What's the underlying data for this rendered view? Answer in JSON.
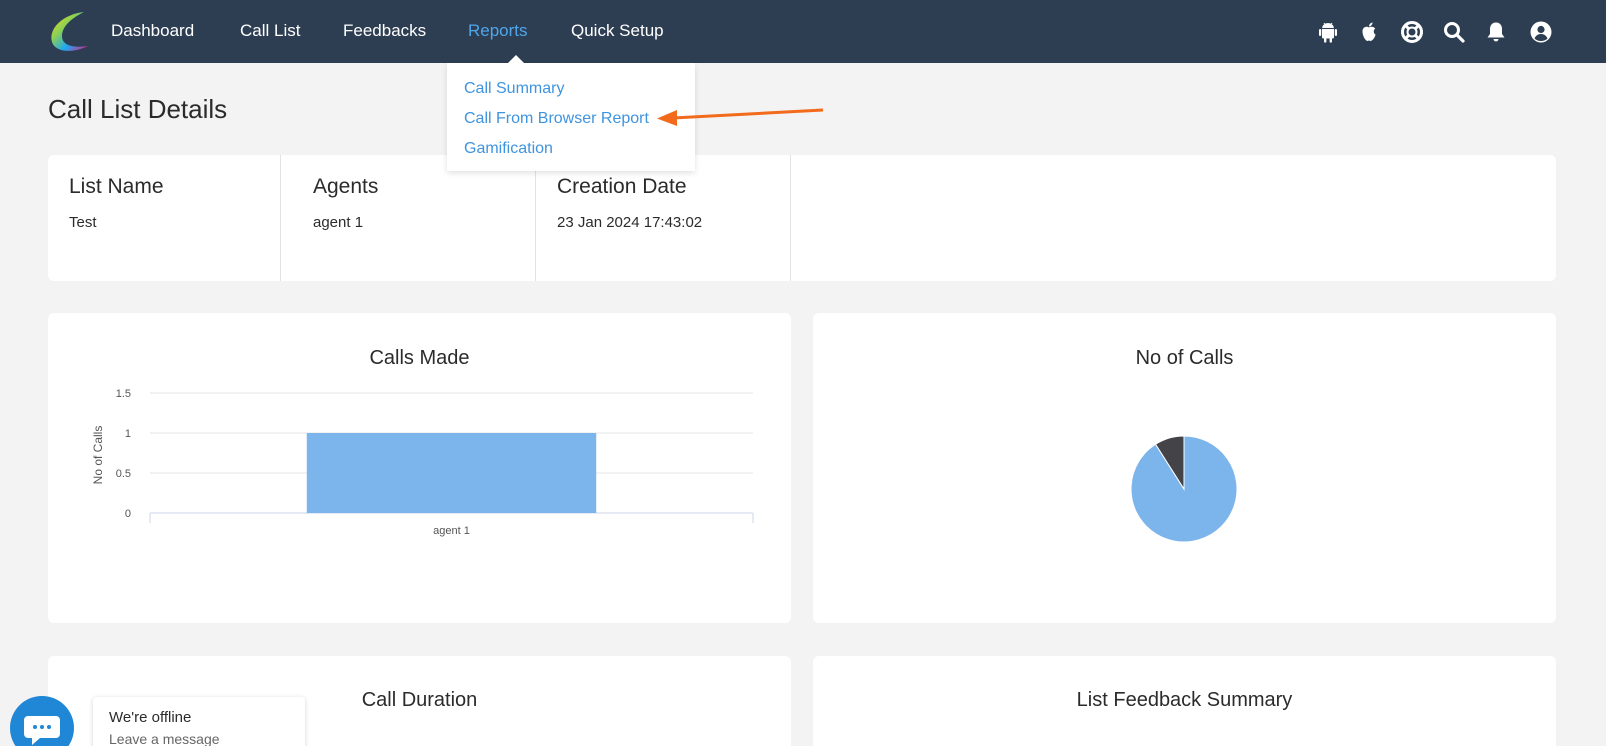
{
  "nav": {
    "items": [
      {
        "label": "Dashboard"
      },
      {
        "label": "Call List"
      },
      {
        "label": "Feedbacks"
      },
      {
        "label": "Reports"
      },
      {
        "label": "Quick Setup"
      }
    ],
    "active_item": "Reports",
    "icons": [
      "android-icon",
      "apple-icon",
      "support-icon",
      "search-icon",
      "bell-icon",
      "user-icon"
    ],
    "active_color": "#4fa6ea",
    "bar_color": "#2d3e52"
  },
  "reports_menu": {
    "items": [
      {
        "label": "Call Summary"
      },
      {
        "label": "Call From Browser Report"
      },
      {
        "label": "Gamification"
      }
    ],
    "annotation_color": "#f26a1b"
  },
  "page": {
    "title": "Call List Details"
  },
  "details": {
    "list_name_label": "List Name",
    "list_name_value": "Test",
    "agents_label": "Agents",
    "agents_value": "agent 1",
    "creation_date_label": "Creation Date",
    "creation_date_value": "23 Jan 2024 17:43:02"
  },
  "panels": {
    "calls_made_title": "Calls Made",
    "no_of_calls_title": "No of Calls",
    "call_duration_title": "Call Duration",
    "list_feedback_title": "List Feedback Summary"
  },
  "chart_data": [
    {
      "type": "bar",
      "title": "Calls Made",
      "ylabel": "No of Calls",
      "xlabel": "",
      "categories": [
        "agent 1"
      ],
      "values": [
        1
      ],
      "ylim": [
        0,
        1.5
      ],
      "yticks": [
        0,
        0.5,
        1,
        1.5
      ],
      "ytick_labels": [
        "0",
        "0.5",
        "1",
        "1.5"
      ],
      "grid": true,
      "bar_color": "#7cb5ec"
    },
    {
      "type": "pie",
      "title": "No of Calls",
      "values": [
        91,
        9
      ],
      "colors": [
        "#7cb5ec",
        "#434348"
      ]
    }
  ],
  "chat": {
    "status": "We're offline",
    "subtext": "Leave a message",
    "color": "#1f87d6"
  }
}
